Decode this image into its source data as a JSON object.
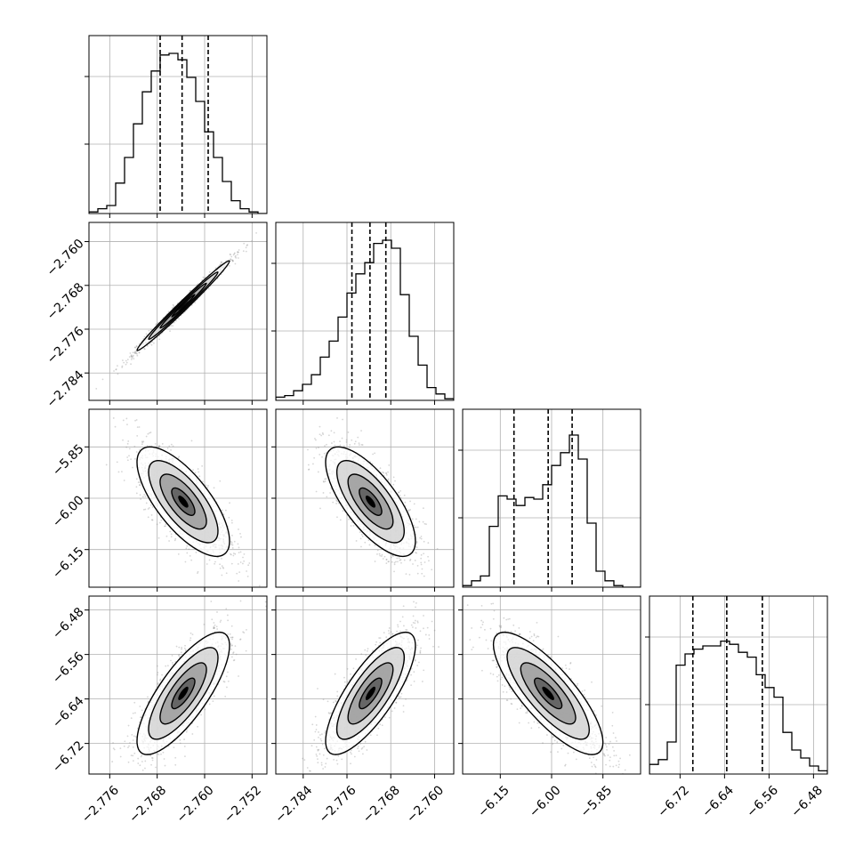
{
  "chart_data": {
    "type": "corner",
    "grid": true,
    "parameters": [
      {
        "index": 0,
        "range": [
          -2.7795,
          -2.7495
        ],
        "ticks": [
          -2.776,
          -2.768,
          -2.76,
          -2.752
        ],
        "tick_labels": [
          "−2.776",
          "−2.768",
          "−2.760",
          "−2.752"
        ],
        "quantiles": [
          -2.7675,
          -2.7638,
          -2.7594
        ],
        "mean": -2.7636,
        "std": 0.0039,
        "hist_bins": [
          0.01,
          0.03,
          0.05,
          0.19,
          0.35,
          0.56,
          0.76,
          0.89,
          0.99,
          1.0,
          0.96,
          0.85,
          0.7,
          0.51,
          0.35,
          0.2,
          0.08,
          0.03,
          0.01,
          0.0
        ]
      },
      {
        "index": 1,
        "range": [
          -2.789,
          -2.7565
        ],
        "ticks": [
          -2.784,
          -2.776,
          -2.768,
          -2.76
        ],
        "tick_labels": [
          "−2.784",
          "−2.776",
          "−2.768",
          "−2.760"
        ],
        "quantiles": [
          -2.7751,
          -2.7718,
          -2.7689
        ],
        "mean": -2.7717,
        "std": 0.0041,
        "hist_bins": [
          0.02,
          0.03,
          0.06,
          0.1,
          0.16,
          0.27,
          0.37,
          0.52,
          0.67,
          0.79,
          0.86,
          0.98,
          1.0,
          0.95,
          0.66,
          0.4,
          0.22,
          0.08,
          0.04,
          0.01
        ]
      },
      {
        "index": 2,
        "range": [
          -6.26,
          -5.74
        ],
        "ticks": [
          -6.15,
          -6.0,
          -5.85
        ],
        "tick_labels": [
          "−6.15",
          "−6.00",
          "−5.85"
        ],
        "quantiles": [
          -6.11,
          -6.01,
          -5.94
        ],
        "mean": -6.01,
        "std": 0.08,
        "hist_bins": [
          0.01,
          0.04,
          0.07,
          0.38,
          0.57,
          0.55,
          0.51,
          0.56,
          0.55,
          0.64,
          0.76,
          0.84,
          0.95,
          0.8,
          0.4,
          0.1,
          0.04,
          0.01,
          0.0,
          0.0
        ]
      },
      {
        "index": 3,
        "range": [
          -6.775,
          -6.455
        ],
        "ticks": [
          -6.72,
          -6.64,
          -6.56,
          -6.48
        ],
        "tick_labels": [
          "−6.72",
          "−6.64",
          "−6.56",
          "−6.48"
        ],
        "quantiles": [
          -6.697,
          -6.636,
          -6.572
        ],
        "mean": -6.63,
        "std": 0.055,
        "hist_bins": [
          0.06,
          0.09,
          0.2,
          0.68,
          0.75,
          0.78,
          0.8,
          0.8,
          0.83,
          0.81,
          0.76,
          0.73,
          0.62,
          0.54,
          0.48,
          0.26,
          0.15,
          0.1,
          0.05,
          0.02
        ]
      }
    ],
    "correlations": [
      [
        1.0,
        0.99,
        -0.72,
        0.78
      ],
      [
        0.99,
        1.0,
        -0.72,
        0.78
      ],
      [
        -0.72,
        -0.72,
        1.0,
        -0.8
      ],
      [
        0.78,
        0.78,
        -0.8,
        1.0
      ]
    ],
    "contour_levels_sigma": [
      0.5,
      1.0,
      1.5,
      2.0
    ],
    "colors": {
      "line": "#000000",
      "points": "#8a8a8a",
      "grid": "#b0b0b0",
      "density_max": "#000000"
    }
  }
}
